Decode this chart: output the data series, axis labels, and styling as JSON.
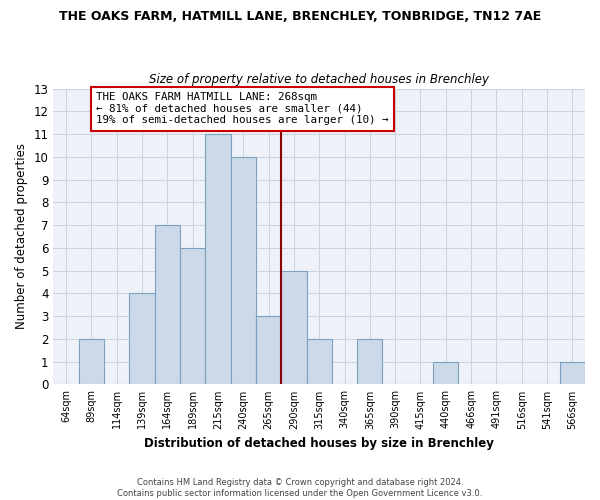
{
  "title": "THE OAKS FARM, HATMILL LANE, BRENCHLEY, TONBRIDGE, TN12 7AE",
  "subtitle": "Size of property relative to detached houses in Brenchley",
  "xlabel": "Distribution of detached houses by size in Brenchley",
  "ylabel": "Number of detached properties",
  "bar_labels": [
    "64sqm",
    "89sqm",
    "114sqm",
    "139sqm",
    "164sqm",
    "189sqm",
    "215sqm",
    "240sqm",
    "265sqm",
    "290sqm",
    "315sqm",
    "340sqm",
    "365sqm",
    "390sqm",
    "415sqm",
    "440sqm",
    "466sqm",
    "491sqm",
    "516sqm",
    "541sqm",
    "566sqm"
  ],
  "bar_values": [
    0,
    2,
    0,
    4,
    7,
    6,
    11,
    10,
    3,
    5,
    2,
    0,
    2,
    0,
    0,
    1,
    0,
    0,
    0,
    0,
    1
  ],
  "bar_color": "#ccd9e8",
  "bar_edge_color": "#7ba0c0",
  "vline_x": 8.5,
  "vline_color": "#8b0000",
  "ylim": [
    0,
    13
  ],
  "yticks": [
    0,
    1,
    2,
    3,
    4,
    5,
    6,
    7,
    8,
    9,
    10,
    11,
    12,
    13
  ],
  "annotation_title": "THE OAKS FARM HATMILL LANE: 268sqm",
  "annotation_line1": "← 81% of detached houses are smaller (44)",
  "annotation_line2": "19% of semi-detached houses are larger (10) →",
  "annotation_box_color": "#ffffff",
  "annotation_box_edge": "#cc0000",
  "footer_line1": "Contains HM Land Registry data © Crown copyright and database right 2024.",
  "footer_line2": "Contains public sector information licensed under the Open Government Licence v3.0.",
  "grid_color": "#c8d4e0",
  "bg_color": "#eef2f8"
}
